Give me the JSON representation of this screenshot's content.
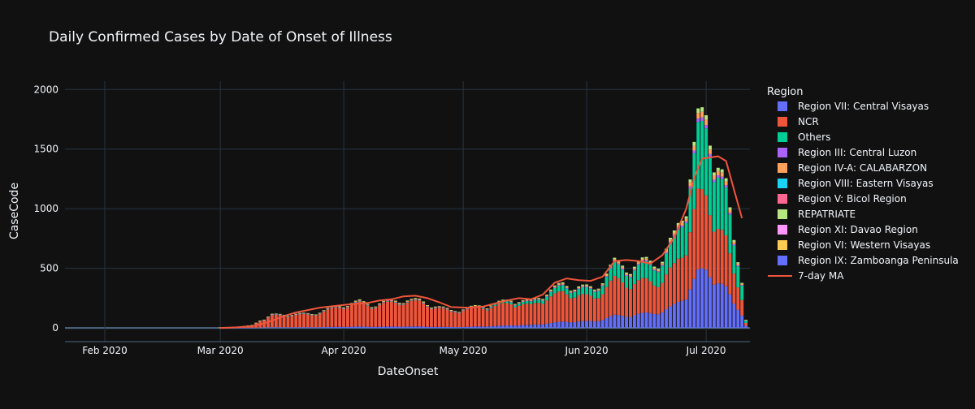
{
  "chart_data": {
    "type": "bar",
    "title": "Daily Confirmed Cases by Date of Onset of Illness",
    "xlabel": "DateOnset",
    "ylabel": "CaseCode",
    "barmode": "stack",
    "grid": true,
    "legend_position": "right",
    "legend_title": "Region",
    "xlim": [
      "2020-01-22",
      "2020-07-12"
    ],
    "ylim": [
      -115,
      2070
    ],
    "x_ticks": [
      {
        "date": "2020-02-01",
        "label": "Feb 2020"
      },
      {
        "date": "2020-03-01",
        "label": "Mar 2020"
      },
      {
        "date": "2020-04-01",
        "label": "Apr 2020"
      },
      {
        "date": "2020-05-01",
        "label": "May 2020"
      },
      {
        "date": "2020-06-01",
        "label": "Jun 2020"
      },
      {
        "date": "2020-07-01",
        "label": "Jul 2020"
      }
    ],
    "y_ticks": [
      {
        "value": 0,
        "label": "0"
      },
      {
        "value": 500,
        "label": "500"
      },
      {
        "value": 1000,
        "label": "1000"
      },
      {
        "value": 1500,
        "label": "1500"
      },
      {
        "value": 2000,
        "label": "2000"
      }
    ],
    "series": [
      {
        "name": "Region VII: Central Visayas",
        "color": "#636efa"
      },
      {
        "name": "NCR",
        "color": "#EF553B"
      },
      {
        "name": "Others",
        "color": "#00cc96"
      },
      {
        "name": "Region III: Central Luzon",
        "color": "#ab63fa"
      },
      {
        "name": "Region IV-A: CALABARZON",
        "color": "#FFA15A"
      },
      {
        "name": "Region VIII: Eastern Visayas",
        "color": "#19d3f3"
      },
      {
        "name": "Region V: Bicol Region",
        "color": "#FF6692"
      },
      {
        "name": "REPATRIATE",
        "color": "#B6E880"
      },
      {
        "name": "Region XI: Davao Region",
        "color": "#FF97FF"
      },
      {
        "name": "Region VI: Western Visayas",
        "color": "#FECB52"
      },
      {
        "name": "Region IX: Zamboanga Peninsula",
        "color": "#636efa"
      }
    ],
    "moving_average": {
      "name": "7-day MA",
      "color": "#EF553B",
      "points": [
        [
          "2020-03-01",
          0
        ],
        [
          "2020-03-05",
          5
        ],
        [
          "2020-03-09",
          15
        ],
        [
          "2020-03-11",
          30
        ],
        [
          "2020-03-13",
          50
        ],
        [
          "2020-03-15",
          75
        ],
        [
          "2020-03-17",
          100
        ],
        [
          "2020-03-20",
          130
        ],
        [
          "2020-03-23",
          150
        ],
        [
          "2020-03-26",
          170
        ],
        [
          "2020-03-30",
          185
        ],
        [
          "2020-04-03",
          200
        ],
        [
          "2020-04-07",
          210
        ],
        [
          "2020-04-10",
          230
        ],
        [
          "2020-04-13",
          240
        ],
        [
          "2020-04-16",
          265
        ],
        [
          "2020-04-19",
          270
        ],
        [
          "2020-04-22",
          250
        ],
        [
          "2020-04-25",
          215
        ],
        [
          "2020-04-28",
          175
        ],
        [
          "2020-05-02",
          170
        ],
        [
          "2020-05-06",
          180
        ],
        [
          "2020-05-09",
          205
        ],
        [
          "2020-05-12",
          230
        ],
        [
          "2020-05-15",
          250
        ],
        [
          "2020-05-18",
          240
        ],
        [
          "2020-05-21",
          280
        ],
        [
          "2020-05-24",
          380
        ],
        [
          "2020-05-27",
          415
        ],
        [
          "2020-05-30",
          400
        ],
        [
          "2020-06-02",
          395
        ],
        [
          "2020-06-05",
          430
        ],
        [
          "2020-06-08",
          560
        ],
        [
          "2020-06-11",
          570
        ],
        [
          "2020-06-14",
          560
        ],
        [
          "2020-06-17",
          540
        ],
        [
          "2020-06-20",
          610
        ],
        [
          "2020-06-23",
          760
        ],
        [
          "2020-06-26",
          1000
        ],
        [
          "2020-06-28",
          1260
        ],
        [
          "2020-06-30",
          1420
        ],
        [
          "2020-07-02",
          1430
        ],
        [
          "2020-07-04",
          1440
        ],
        [
          "2020-07-06",
          1400
        ],
        [
          "2020-07-08",
          1160
        ],
        [
          "2020-07-10",
          920
        ]
      ]
    },
    "bar_profile": [
      [
        "2020-03-01",
        3
      ],
      [
        "2020-03-05",
        6
      ],
      [
        "2020-03-09",
        25
      ],
      [
        "2020-03-12",
        80
      ],
      [
        "2020-03-14",
        120
      ],
      [
        "2020-03-18",
        125
      ],
      [
        "2020-03-24",
        130
      ],
      [
        "2020-03-28",
        170
      ],
      [
        "2020-04-02",
        220
      ],
      [
        "2020-04-05",
        240
      ],
      [
        "2020-04-08",
        210
      ],
      [
        "2020-04-12",
        240
      ],
      [
        "2020-04-16",
        255
      ],
      [
        "2020-04-20",
        250
      ],
      [
        "2020-04-24",
        200
      ],
      [
        "2020-04-28",
        160
      ],
      [
        "2020-05-02",
        180
      ],
      [
        "2020-05-05",
        200
      ],
      [
        "2020-05-09",
        220
      ],
      [
        "2020-05-13",
        260
      ],
      [
        "2020-05-18",
        240
      ],
      [
        "2020-05-22",
        330
      ],
      [
        "2020-05-26",
        400
      ],
      [
        "2020-05-30",
        380
      ],
      [
        "2020-06-03",
        360
      ],
      [
        "2020-06-08",
        600
      ],
      [
        "2020-06-12",
        560
      ],
      [
        "2020-06-16",
        620
      ],
      [
        "2020-06-20",
        630
      ],
      [
        "2020-06-23",
        850
      ],
      [
        "2020-06-26",
        1200
      ],
      [
        "2020-06-29",
        1900
      ],
      [
        "2020-07-01",
        1950
      ],
      [
        "2020-07-03",
        1700
      ],
      [
        "2020-07-06",
        1300
      ],
      [
        "2020-07-08",
        800
      ],
      [
        "2020-07-10",
        500
      ],
      [
        "2020-07-11",
        80
      ]
    ]
  }
}
